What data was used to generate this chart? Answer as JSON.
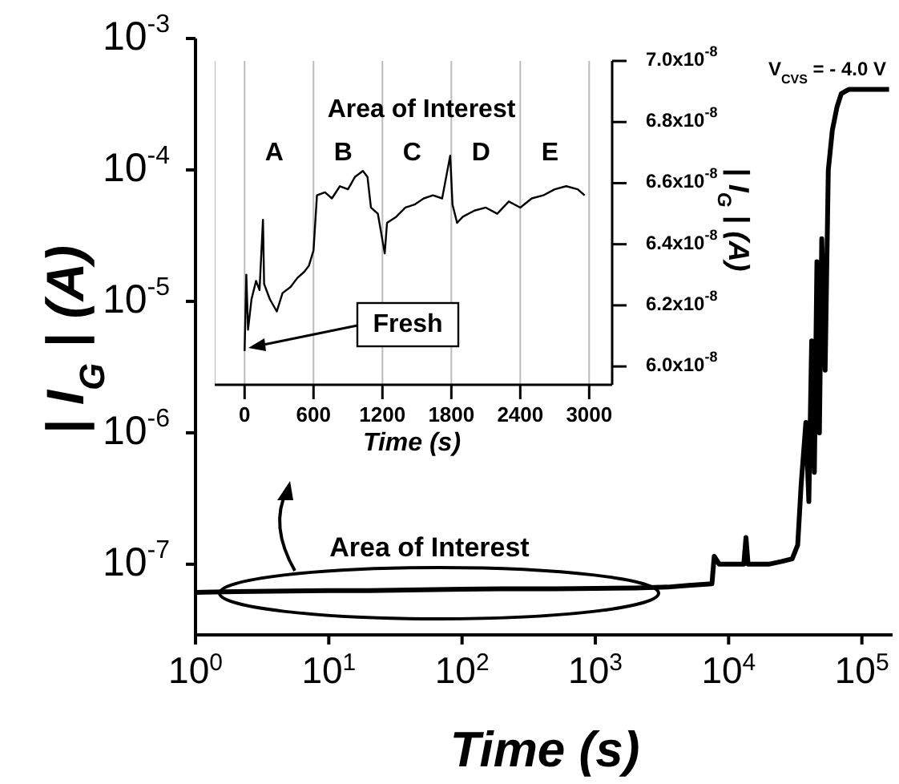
{
  "chart_data": [
    {
      "type": "line",
      "xlabel": "Time (s)",
      "ylabel": "| I$_{G}$ | (A)",
      "log": "xy",
      "marker": "none",
      "line_style": "solid",
      "color": "#000000",
      "xlim": [
        1,
        170000
      ],
      "ylim": [
        2.9e-08,
        0.001
      ],
      "xticks": [
        {
          "value": 1,
          "label": "10$^{0}$"
        },
        {
          "value": 10,
          "label": "10$^{1}$"
        },
        {
          "value": 100,
          "label": "10$^{2}$"
        },
        {
          "value": 1000,
          "label": "10$^{3}$"
        },
        {
          "value": 10000,
          "label": "10$^{4}$"
        },
        {
          "value": 100000,
          "label": "10$^{5}$"
        }
      ],
      "yticks": [
        {
          "value": 1e-07,
          "label": "10$^{-7}$"
        },
        {
          "value": 1e-06,
          "label": "10$^{-6}$"
        },
        {
          "value": 1e-05,
          "label": "10$^{-5}$"
        },
        {
          "value": 0.0001,
          "label": "10$^{-4}$"
        },
        {
          "value": 0.001,
          "label": "10$^{-3}$"
        }
      ],
      "x": [
        1,
        2,
        5,
        10,
        20,
        50,
        100,
        200,
        500,
        1000,
        2000,
        3500,
        5000,
        7500,
        7800,
        8500,
        13000,
        13500,
        14000,
        20000,
        25000,
        30000,
        33000,
        35000,
        38000,
        40000,
        42000,
        44000,
        46000,
        48000,
        50000,
        53000,
        56000,
        60000,
        65000,
        70000,
        80000,
        100000,
        160000
      ],
      "values": [
        6.1e-08,
        6.2e-08,
        6.25e-08,
        6.3e-08,
        6.3e-08,
        6.4e-08,
        6.45e-08,
        6.5e-08,
        6.5e-08,
        6.55e-08,
        6.6e-08,
        6.7e-08,
        6.9e-08,
        7.1e-08,
        1.15e-07,
        1e-07,
        1e-07,
        1.6e-07,
        1e-07,
        1e-07,
        1.05e-07,
        1.1e-07,
        1.4e-07,
        4e-07,
        1.2e-06,
        3e-07,
        5e-06,
        5e-07,
        2e-05,
        1e-06,
        3e-05,
        3e-06,
        0.0001,
        0.0002,
        0.0003,
        0.00038,
        0.00041,
        0.00041,
        0.00041
      ],
      "annotations": [
        "V$_{CVS}$ = - 4.0 V",
        "Area of Interest"
      ]
    },
    {
      "type": "line",
      "xlabel": "Time (s)",
      "ylabel": "| I$_{G}$ | (A)",
      "marker": "none",
      "line_style": "solid",
      "color": "#000000",
      "grid": "x",
      "xlim": [
        -260,
        3200
      ],
      "ylim": [
        5.94e-08,
        7e-08
      ],
      "xticks": [
        0,
        600,
        1200,
        1800,
        2400,
        3000
      ],
      "yticks": [
        {
          "value": 6e-08,
          "label": "6.0x10$^{-8}$"
        },
        {
          "value": 6.2e-08,
          "label": "6.2x10$^{-8}$"
        },
        {
          "value": 6.4e-08,
          "label": "6.4x10$^{-8}$"
        },
        {
          "value": 6.6e-08,
          "label": "6.6x10$^{-8}$"
        },
        {
          "value": 6.8e-08,
          "label": "6.8x10$^{-8}$"
        },
        {
          "value": 7e-08,
          "label": "7.0x10$^{-8}$"
        }
      ],
      "x": [
        0,
        15,
        30,
        60,
        100,
        130,
        160,
        170,
        220,
        280,
        330,
        400,
        460,
        520,
        560,
        600,
        630,
        700,
        760,
        830,
        900,
        960,
        1030,
        1070,
        1100,
        1160,
        1220,
        1240,
        1320,
        1400,
        1480,
        1560,
        1640,
        1720,
        1790,
        1810,
        1850,
        1900,
        2000,
        2100,
        2200,
        2300,
        2400,
        2500,
        2600,
        2700,
        2800,
        2900,
        2960
      ],
      "values": [
        6.05e-08,
        6.3e-08,
        6.12e-08,
        6.22e-08,
        6.28e-08,
        6.25e-08,
        6.48e-08,
        6.27e-08,
        6.22e-08,
        6.18e-08,
        6.24e-08,
        6.26e-08,
        6.29e-08,
        6.31e-08,
        6.33e-08,
        6.38e-08,
        6.56e-08,
        6.57e-08,
        6.55e-08,
        6.59e-08,
        6.58e-08,
        6.62e-08,
        6.64e-08,
        6.62e-08,
        6.52e-08,
        6.5e-08,
        6.37e-08,
        6.47e-08,
        6.49e-08,
        6.52e-08,
        6.53e-08,
        6.55e-08,
        6.56e-08,
        6.55e-08,
        6.69e-08,
        6.53e-08,
        6.47e-08,
        6.49e-08,
        6.51e-08,
        6.52e-08,
        6.5e-08,
        6.54e-08,
        6.52e-08,
        6.55e-08,
        6.56e-08,
        6.58e-08,
        6.59e-08,
        6.58e-08,
        6.56e-08
      ],
      "annotations": [
        "Area of Interest",
        "A",
        "B",
        "C",
        "D",
        "E",
        "Fresh"
      ]
    }
  ]
}
